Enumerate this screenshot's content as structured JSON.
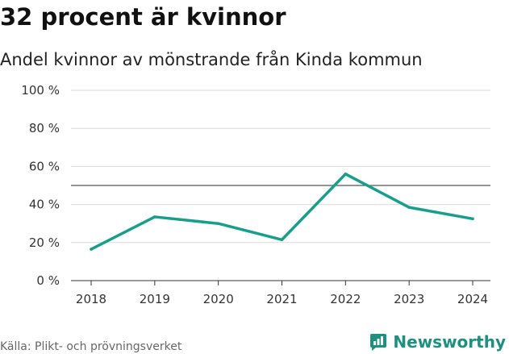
{
  "header": {
    "title": "32 procent är kvinnor",
    "subtitle": "Andel kvinnor av mönstrande från Kinda kommun"
  },
  "footer": {
    "source": "Källa: Plikt- och prövningsverket",
    "brand": "Newsworthy"
  },
  "colors": {
    "line": "#1a9e8c",
    "grid": "#d9d9d9",
    "reference_line": "#555555",
    "brand": "#1f8f7f"
  },
  "chart_data": {
    "type": "line",
    "title": "32 procent är kvinnor",
    "subtitle": "Andel kvinnor av mönstrande från Kinda kommun",
    "categories": [
      "2018",
      "2019",
      "2020",
      "2021",
      "2022",
      "2023",
      "2024"
    ],
    "values": [
      16.5,
      33.5,
      30,
      21.5,
      56,
      38.5,
      32.5
    ],
    "y_ticks": [
      "0 %",
      "20 %",
      "40 %",
      "60 %",
      "80 %",
      "100 %"
    ],
    "ylim": [
      0,
      100
    ],
    "y_tick_step": 20,
    "reference_line": 50,
    "grid": true,
    "legend": "none",
    "xlabel": "",
    "ylabel": ""
  }
}
